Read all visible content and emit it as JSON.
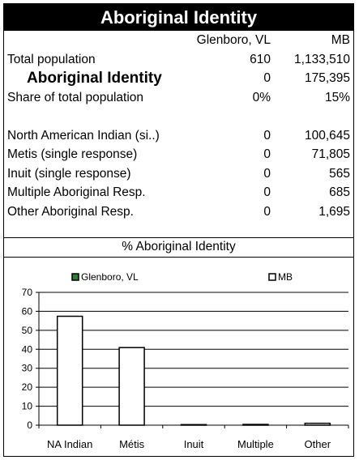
{
  "title": "Aboriginal Identity",
  "table": {
    "columns": [
      "Glenboro, VL",
      "MB"
    ],
    "rows": [
      {
        "label": "Total population",
        "c1": "610",
        "c2": "1,133,510",
        "bold": false
      },
      {
        "label": "Aboriginal Identity",
        "c1": "0",
        "c2": "175,395",
        "bold": true
      },
      {
        "label": "Share of total population",
        "c1": "0%",
        "c2": "15%",
        "bold": false
      },
      {
        "label": "",
        "c1": "",
        "c2": "",
        "bold": false
      },
      {
        "label": "North American Indian (si..)",
        "c1": "0",
        "c2": "100,645",
        "bold": false
      },
      {
        "label": "Metis (single response)",
        "c1": "0",
        "c2": "71,805",
        "bold": false
      },
      {
        "label": "Inuit (single response)",
        "c1": "0",
        "c2": "565",
        "bold": false
      },
      {
        "label": "Multiple Aboriginal Resp.",
        "c1": "0",
        "c2": "685",
        "bold": false
      },
      {
        "label": "Other Aboriginal Resp.",
        "c1": "0",
        "c2": "1,695",
        "bold": false
      }
    ]
  },
  "chart_data": {
    "type": "bar",
    "title": "% Aboriginal Identity",
    "categories": [
      "NA Indian",
      "Métis",
      "Inuit",
      "Multiple",
      "Other"
    ],
    "series": [
      {
        "name": "Glenboro, VL",
        "values": [
          0,
          0,
          0,
          0,
          0
        ],
        "color": "#2e7d32"
      },
      {
        "name": "MB",
        "values": [
          57.4,
          40.9,
          0.3,
          0.4,
          1.0
        ],
        "color": "#ffffff"
      }
    ],
    "ylim": [
      0,
      70
    ],
    "yticks": [
      0,
      10,
      20,
      30,
      40,
      50,
      60,
      70
    ],
    "grid": true,
    "legend": "top"
  }
}
